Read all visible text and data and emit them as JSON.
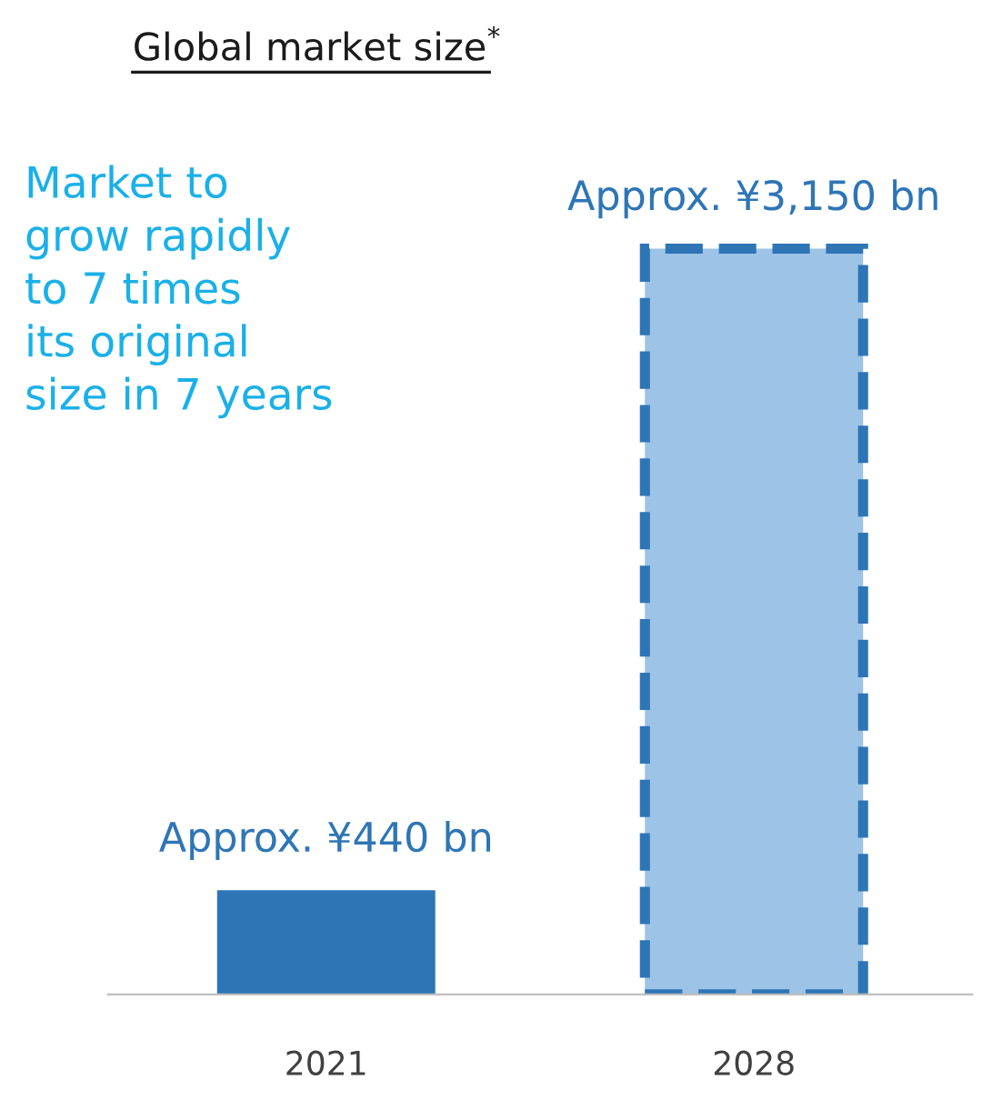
{
  "chart_data": {
    "type": "bar",
    "title": "Global market size$^{*}$",
    "categories": [
      "2021",
      "2028"
    ],
    "values": [
      440,
      3150
    ],
    "colors": [
      "#2e75b6",
      "#9dc3e6"
    ],
    "value_labels": [
      "Approx. ¥440 bn",
      "Approx. ¥3,150 bn"
    ],
    "annotations": [
      "Market to\ngrow rapidly\nto 7 times\nits original\nsize in 7 years"
    ],
    "grid": false,
    "legend": false
  }
}
